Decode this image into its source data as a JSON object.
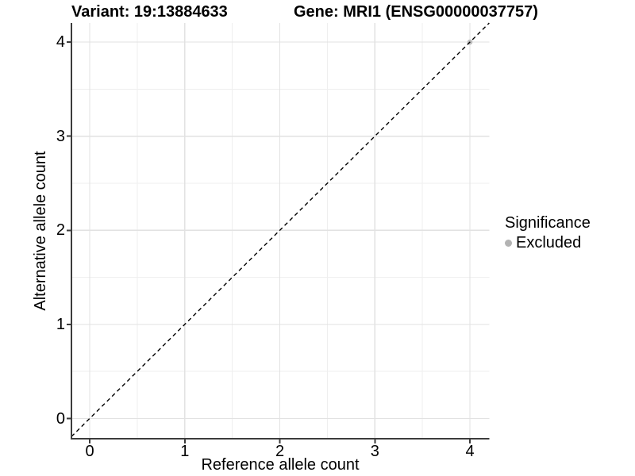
{
  "chart_data": {
    "type": "scatter",
    "title_left": "Variant: 19:13884633",
    "title_right": "Gene: MRI1 (ENSG00000037757)",
    "xlabel": "Reference allele count",
    "ylabel": "Alternative allele count",
    "xlim": [
      -0.2,
      4.2
    ],
    "ylim": [
      -0.2,
      4.2
    ],
    "x_ticks": [
      0,
      1,
      2,
      3,
      4
    ],
    "y_ticks": [
      0,
      1,
      2,
      3,
      4
    ],
    "x_minor_ticks": [
      0.5,
      1.5,
      2.5,
      3.5
    ],
    "y_minor_ticks": [
      0.5,
      1.5,
      2.5,
      3.5
    ],
    "grid": true,
    "identity_line": {
      "style": "dashed",
      "color": "#000000",
      "from": [
        -0.2,
        -0.2
      ],
      "to": [
        4.2,
        4.2
      ]
    },
    "points": [
      {
        "x": 4,
        "y": 4,
        "series": "Excluded",
        "color": "#bdbdbd"
      }
    ],
    "legend": {
      "title": "Significance",
      "position": "right",
      "items": [
        {
          "label": "Excluded",
          "color": "#b3b3b3",
          "marker": "dot"
        }
      ]
    },
    "colors": {
      "grid_major": "#e2e2e2",
      "grid_minor": "#efefef",
      "axis": "#3c3c3c",
      "text": "#000000"
    }
  }
}
